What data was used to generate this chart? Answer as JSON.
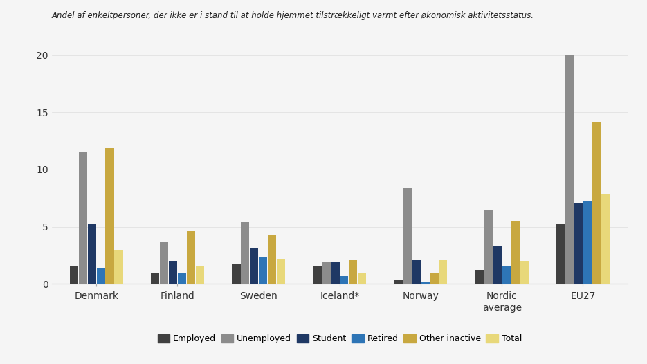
{
  "title": "Andel af enkeltpersoner, der ikke er i stand til at holde hjemmet tilstrækkeligt varmt efter økonomisk aktivitetsstatus.",
  "categories": [
    "Denmark",
    "Finland",
    "Sweden",
    "Iceland*",
    "Norway",
    "Nordic\naverage",
    "EU27"
  ],
  "series": {
    "Employed": [
      1.6,
      1.0,
      1.8,
      1.6,
      0.4,
      1.2,
      5.3
    ],
    "Unemployed": [
      11.5,
      3.7,
      5.4,
      1.9,
      8.4,
      6.5,
      20.0
    ],
    "Student": [
      5.2,
      2.0,
      3.1,
      1.9,
      2.1,
      3.3,
      7.1
    ],
    "Retired": [
      1.4,
      0.9,
      2.4,
      0.7,
      0.2,
      1.5,
      7.2
    ],
    "Other inactive": [
      11.9,
      4.6,
      4.3,
      2.1,
      0.9,
      5.5,
      14.1
    ],
    "Total": [
      3.0,
      1.5,
      2.2,
      1.0,
      2.1,
      2.0,
      7.8
    ]
  },
  "colors": {
    "Employed": "#404040",
    "Unemployed": "#8c8c8c",
    "Student": "#1f3864",
    "Retired": "#2e75b6",
    "Other inactive": "#c8a840",
    "Total": "#e8d87a"
  },
  "ylim": [
    0,
    21
  ],
  "yticks": [
    0,
    5,
    10,
    15,
    20
  ],
  "bar_width": 0.11,
  "background_color": "#f5f5f5",
  "title_fontsize": 8.5,
  "legend_fontsize": 9,
  "axis_label_fontsize": 10
}
